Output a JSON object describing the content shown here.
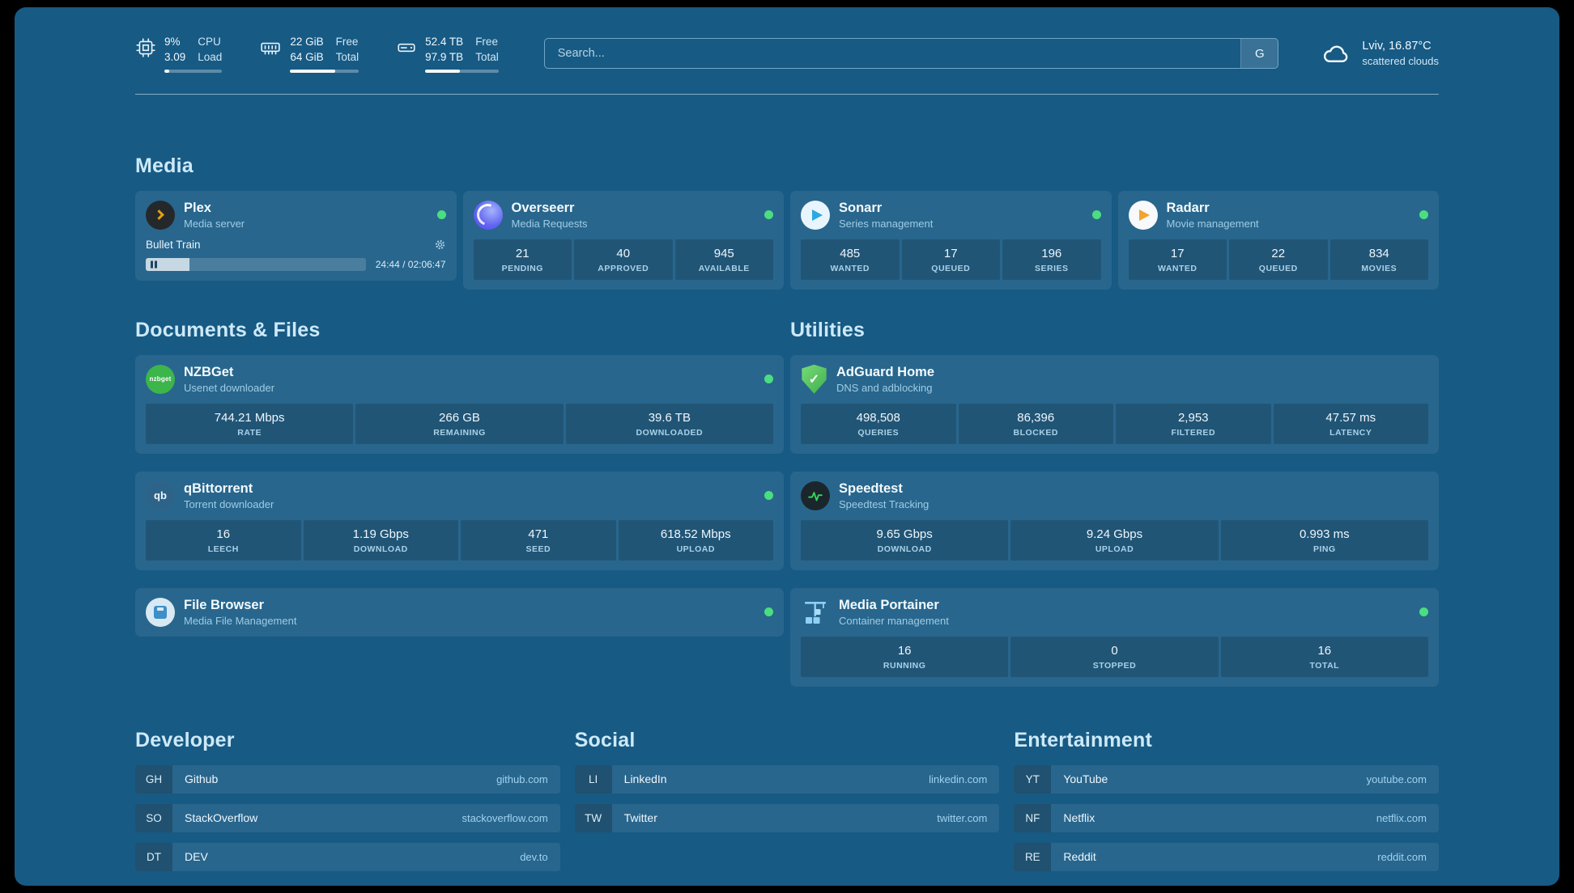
{
  "colors": {
    "page_bg": "#175a84",
    "card_bg": "rgba(255,255,255,0.075)",
    "status_online": "#4ade80",
    "plex_orange": "#e5a00d",
    "sonarr_blue": "#2aa9e0",
    "radarr_orange": "#f2a42d",
    "nzbget_green": "#3cb54b",
    "adguard_green": "#3fae4c",
    "speedtest_green": "#35d658",
    "overseerr_purple": "#6366f1"
  },
  "topbar": {
    "cpu": {
      "icon": "cpu-icon",
      "value1": "9%",
      "value2": "3.09",
      "label1": "CPU",
      "label2": "Load",
      "percent": 9
    },
    "memory": {
      "icon": "memory-icon",
      "value1": "22 GiB",
      "value2": "64 GiB",
      "label1": "Free",
      "label2": "Total",
      "percent": 66
    },
    "disk": {
      "icon": "disk-icon",
      "value1": "52.4 TB",
      "value2": "97.9 TB",
      "label1": "Free",
      "label2": "Total",
      "percent": 47
    },
    "search": {
      "placeholder": "Search...",
      "button": "G"
    },
    "weather": {
      "icon": "cloud-icon",
      "location_temp": "Lviv, 16.87°C",
      "condition": "scattered clouds"
    }
  },
  "icons": {
    "adguard_check_glyph": "✓"
  },
  "sections": {
    "media": {
      "title": "Media",
      "cards": [
        {
          "name": "Plex",
          "subtitle": "Media server",
          "icon": "plex-icon",
          "online": true,
          "now_playing": {
            "title": "Bullet Train",
            "time": "24:44 / 02:06:47",
            "progress_percent": 20
          }
        },
        {
          "name": "Overseerr",
          "subtitle": "Media Requests",
          "icon": "overseerr-icon",
          "online": true,
          "stats": [
            {
              "value": "21",
              "label": "PENDING"
            },
            {
              "value": "40",
              "label": "APPROVED"
            },
            {
              "value": "945",
              "label": "AVAILABLE"
            }
          ]
        },
        {
          "name": "Sonarr",
          "subtitle": "Series management",
          "icon": "sonarr-icon",
          "online": true,
          "stats": [
            {
              "value": "485",
              "label": "WANTED"
            },
            {
              "value": "17",
              "label": "QUEUED"
            },
            {
              "value": "196",
              "label": "SERIES"
            }
          ]
        },
        {
          "name": "Radarr",
          "subtitle": "Movie management",
          "icon": "radarr-icon",
          "online": true,
          "stats": [
            {
              "value": "17",
              "label": "WANTED"
            },
            {
              "value": "22",
              "label": "QUEUED"
            },
            {
              "value": "834",
              "label": "MOVIES"
            }
          ]
        }
      ]
    },
    "documents": {
      "title": "Documents & Files",
      "cards": [
        {
          "name": "NZBGet",
          "subtitle": "Usenet downloader",
          "icon": "nzbget-icon",
          "icon_glyph": "nzbget",
          "online": true,
          "stats": [
            {
              "value": "744.21 Mbps",
              "label": "RATE"
            },
            {
              "value": "266 GB",
              "label": "REMAINING"
            },
            {
              "value": "39.6 TB",
              "label": "DOWNLOADED"
            }
          ]
        },
        {
          "name": "qBittorrent",
          "subtitle": "Torrent downloader",
          "icon": "qbittorrent-icon",
          "icon_glyph": "qb",
          "online": true,
          "stats": [
            {
              "value": "16",
              "label": "LEECH"
            },
            {
              "value": "1.19 Gbps",
              "label": "DOWNLOAD"
            },
            {
              "value": "471",
              "label": "SEED"
            },
            {
              "value": "618.52 Mbps",
              "label": "UPLOAD"
            }
          ]
        },
        {
          "name": "File Browser",
          "subtitle": "Media File Management",
          "icon": "filebrowser-icon",
          "online": true,
          "stats": []
        }
      ]
    },
    "utilities": {
      "title": "Utilities",
      "cards": [
        {
          "name": "AdGuard Home",
          "subtitle": "DNS and adblocking",
          "icon": "adguard-icon",
          "stats": [
            {
              "value": "498,508",
              "label": "QUERIES"
            },
            {
              "value": "86,396",
              "label": "BLOCKED"
            },
            {
              "value": "2,953",
              "label": "FILTERED"
            },
            {
              "value": "47.57 ms",
              "label": "LATENCY"
            }
          ]
        },
        {
          "name": "Speedtest",
          "subtitle": "Speedtest Tracking",
          "icon": "speedtest-icon",
          "stats": [
            {
              "value": "9.65 Gbps",
              "label": "DOWNLOAD"
            },
            {
              "value": "9.24 Gbps",
              "label": "UPLOAD"
            },
            {
              "value": "0.993 ms",
              "label": "PING"
            }
          ]
        },
        {
          "name": "Media Portainer",
          "subtitle": "Container management",
          "icon": "portainer-icon",
          "online": true,
          "stats": [
            {
              "value": "16",
              "label": "RUNNING"
            },
            {
              "value": "0",
              "label": "STOPPED"
            },
            {
              "value": "16",
              "label": "TOTAL"
            }
          ]
        }
      ]
    }
  },
  "bookmarks": {
    "developer": {
      "title": "Developer",
      "items": [
        {
          "abbr": "GH",
          "name": "Github",
          "domain": "github.com"
        },
        {
          "abbr": "SO",
          "name": "StackOverflow",
          "domain": "stackoverflow.com"
        },
        {
          "abbr": "DT",
          "name": "DEV",
          "domain": "dev.to"
        }
      ]
    },
    "social": {
      "title": "Social",
      "items": [
        {
          "abbr": "LI",
          "name": "LinkedIn",
          "domain": "linkedin.com"
        },
        {
          "abbr": "TW",
          "name": "Twitter",
          "domain": "twitter.com"
        }
      ]
    },
    "entertainment": {
      "title": "Entertainment",
      "items": [
        {
          "abbr": "YT",
          "name": "YouTube",
          "domain": "youtube.com"
        },
        {
          "abbr": "NF",
          "name": "Netflix",
          "domain": "netflix.com"
        },
        {
          "abbr": "RE",
          "name": "Reddit",
          "domain": "reddit.com"
        }
      ]
    }
  }
}
